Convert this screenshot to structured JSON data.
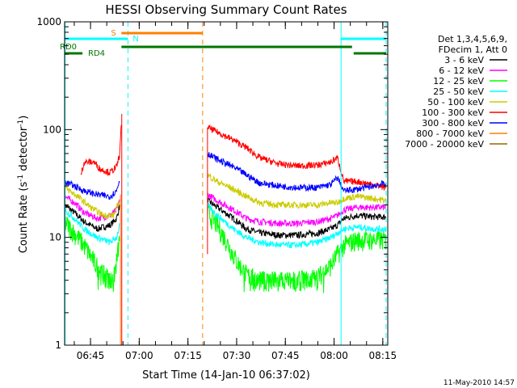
{
  "chart_data": {
    "type": "line",
    "title": "HESSI Observing Summary Count Rates",
    "xlabel": "Start Time (14-Jan-10 06:37:02)",
    "ylabel_main": "Count Rate (s",
    "ylabel_sup1": "-1",
    "ylabel_mid": " detector",
    "ylabel_sup2": "-1",
    "ylabel_end": ")",
    "yscale": "log",
    "ylim": [
      1,
      1000
    ],
    "xlim_minutes": [
      0,
      99.5
    ],
    "x_ticks": [
      "06:45",
      "07:00",
      "07:15",
      "07:30",
      "07:45",
      "08:00",
      "08:15"
    ],
    "x_tick_minutes": [
      7.97,
      22.97,
      37.97,
      52.97,
      67.97,
      82.97,
      97.97
    ],
    "y_ticks": [
      "1",
      "10",
      "100",
      "1000"
    ],
    "y_tick_values": [
      1,
      10,
      100,
      1000
    ],
    "legend_header": [
      "Det 1,3,4,5,6,9,",
      "FDecim 1, Att 0"
    ],
    "legend_placement": "right",
    "timestamp": "11-May-2010 14:57",
    "flags": {
      "S": "S",
      "N": "N",
      "RD0": "RD0",
      "RD4": "RD4",
      "saa_minutes": [
        17.5,
        42.5
      ],
      "night_minutes": [
        [
          0,
          19.5
        ],
        [
          85,
          99
        ]
      ],
      "rd0_minutes": [
        [
          17.5,
          88.5
        ]
      ],
      "rd4_minutes": [
        [
          0,
          5.5
        ],
        [
          89,
          99
        ]
      ]
    },
    "night_boundaries_solid": [
      0,
      85
    ],
    "night_boundaries_dashed": [
      19.5,
      99
    ],
    "saa_boundary_dashed": 42.5,
    "gap_minutes": [
      17.5,
      43.5
    ],
    "series": [
      {
        "name": "3 - 6 keV",
        "color": "#000000",
        "values": [
          [
            0,
            20
          ],
          [
            3,
            17
          ],
          [
            6,
            14
          ],
          [
            10,
            12
          ],
          [
            14,
            13
          ],
          [
            16,
            15
          ],
          [
            17,
            20
          ],
          [
            44,
            22
          ],
          [
            47,
            19
          ],
          [
            52,
            15
          ],
          [
            56,
            12
          ],
          [
            60,
            11
          ],
          [
            66,
            10.5
          ],
          [
            72,
            10.5
          ],
          [
            78,
            11
          ],
          [
            82,
            12
          ],
          [
            84,
            13
          ],
          [
            86,
            15
          ],
          [
            90,
            16
          ],
          [
            95,
            15.5
          ],
          [
            99,
            15.5
          ]
        ]
      },
      {
        "name": "6 - 12 keV",
        "color": "#ff00ff",
        "values": [
          [
            0,
            24
          ],
          [
            3,
            21
          ],
          [
            6,
            17
          ],
          [
            10,
            15
          ],
          [
            14,
            16
          ],
          [
            16,
            18
          ],
          [
            17,
            22
          ],
          [
            44,
            25
          ],
          [
            47,
            22
          ],
          [
            52,
            18
          ],
          [
            56,
            15
          ],
          [
            60,
            14
          ],
          [
            66,
            13.5
          ],
          [
            72,
            13.5
          ],
          [
            78,
            14
          ],
          [
            82,
            15
          ],
          [
            84,
            16
          ],
          [
            86,
            18
          ],
          [
            90,
            19
          ],
          [
            95,
            19
          ],
          [
            99,
            19
          ]
        ]
      },
      {
        "name": "12 - 25 keV",
        "color": "#00ff00",
        "values": [
          [
            0,
            14
          ],
          [
            3,
            11
          ],
          [
            6,
            8.5
          ],
          [
            9,
            6
          ],
          [
            12,
            4.5
          ],
          [
            15,
            4
          ],
          [
            16,
            6
          ],
          [
            17,
            10
          ],
          [
            44,
            17
          ],
          [
            47,
            13
          ],
          [
            50,
            9
          ],
          [
            53,
            6
          ],
          [
            56,
            4.5
          ],
          [
            60,
            4
          ],
          [
            66,
            4
          ],
          [
            72,
            4
          ],
          [
            78,
            4.3
          ],
          [
            82,
            5.5
          ],
          [
            84,
            7
          ],
          [
            86,
            8.5
          ],
          [
            90,
            9.5
          ],
          [
            95,
            9.5
          ],
          [
            99,
            9.5
          ]
        ]
      },
      {
        "name": "25 - 50 keV",
        "color": "#00ffff",
        "values": [
          [
            0,
            18
          ],
          [
            3,
            15
          ],
          [
            6,
            12
          ],
          [
            10,
            10
          ],
          [
            14,
            9
          ],
          [
            16,
            10
          ],
          [
            17,
            13
          ],
          [
            44,
            20
          ],
          [
            47,
            16
          ],
          [
            52,
            12
          ],
          [
            56,
            10
          ],
          [
            60,
            9
          ],
          [
            66,
            8.5
          ],
          [
            72,
            8.5
          ],
          [
            78,
            9
          ],
          [
            82,
            10
          ],
          [
            84,
            11
          ],
          [
            86,
            12
          ],
          [
            90,
            12.5
          ],
          [
            95,
            12
          ],
          [
            99,
            12
          ]
        ]
      },
      {
        "name": "50 - 100 keV",
        "color": "#cccc00",
        "values": [
          [
            0,
            29
          ],
          [
            4,
            24
          ],
          [
            8,
            19
          ],
          [
            12,
            16
          ],
          [
            15,
            16
          ],
          [
            17,
            22
          ],
          [
            44,
            38
          ],
          [
            47,
            33
          ],
          [
            52,
            28
          ],
          [
            56,
            24
          ],
          [
            60,
            21
          ],
          [
            66,
            20
          ],
          [
            72,
            20
          ],
          [
            78,
            20
          ],
          [
            82,
            21
          ],
          [
            84,
            21
          ],
          [
            86,
            23
          ],
          [
            90,
            24
          ],
          [
            95,
            23
          ],
          [
            99,
            22
          ]
        ]
      },
      {
        "name": "100 - 300 keV",
        "color": "#ff0000",
        "values": [
          [
            5,
            38
          ],
          [
            6,
            50
          ],
          [
            9,
            50
          ],
          [
            11,
            43
          ],
          [
            14,
            40
          ],
          [
            16,
            45
          ],
          [
            17,
            60
          ],
          [
            17.5,
            120
          ],
          [
            44,
            105
          ],
          [
            47,
            95
          ],
          [
            52,
            80
          ],
          [
            56,
            68
          ],
          [
            60,
            55
          ],
          [
            66,
            48
          ],
          [
            72,
            46
          ],
          [
            78,
            47
          ],
          [
            82,
            50
          ],
          [
            84,
            55
          ],
          [
            86,
            33
          ],
          [
            90,
            33
          ],
          [
            95,
            31
          ],
          [
            99,
            29
          ]
        ]
      },
      {
        "name": "300 - 800 keV",
        "color": "#0000ff",
        "values": [
          [
            0,
            33
          ],
          [
            3,
            30
          ],
          [
            6,
            27
          ],
          [
            10,
            25
          ],
          [
            14,
            24
          ],
          [
            16,
            27
          ],
          [
            17,
            35
          ],
          [
            44,
            60
          ],
          [
            47,
            53
          ],
          [
            52,
            45
          ],
          [
            56,
            38
          ],
          [
            60,
            32
          ],
          [
            66,
            30
          ],
          [
            72,
            29
          ],
          [
            78,
            29
          ],
          [
            82,
            31
          ],
          [
            84,
            36
          ],
          [
            86,
            27
          ],
          [
            90,
            28
          ],
          [
            95,
            30
          ],
          [
            99,
            32
          ]
        ]
      },
      {
        "name": "800 - 7000 keV",
        "color": "#ff8000",
        "values": []
      },
      {
        "name": "7000 - 20000 keV",
        "color": "#996600",
        "values": []
      }
    ]
  }
}
